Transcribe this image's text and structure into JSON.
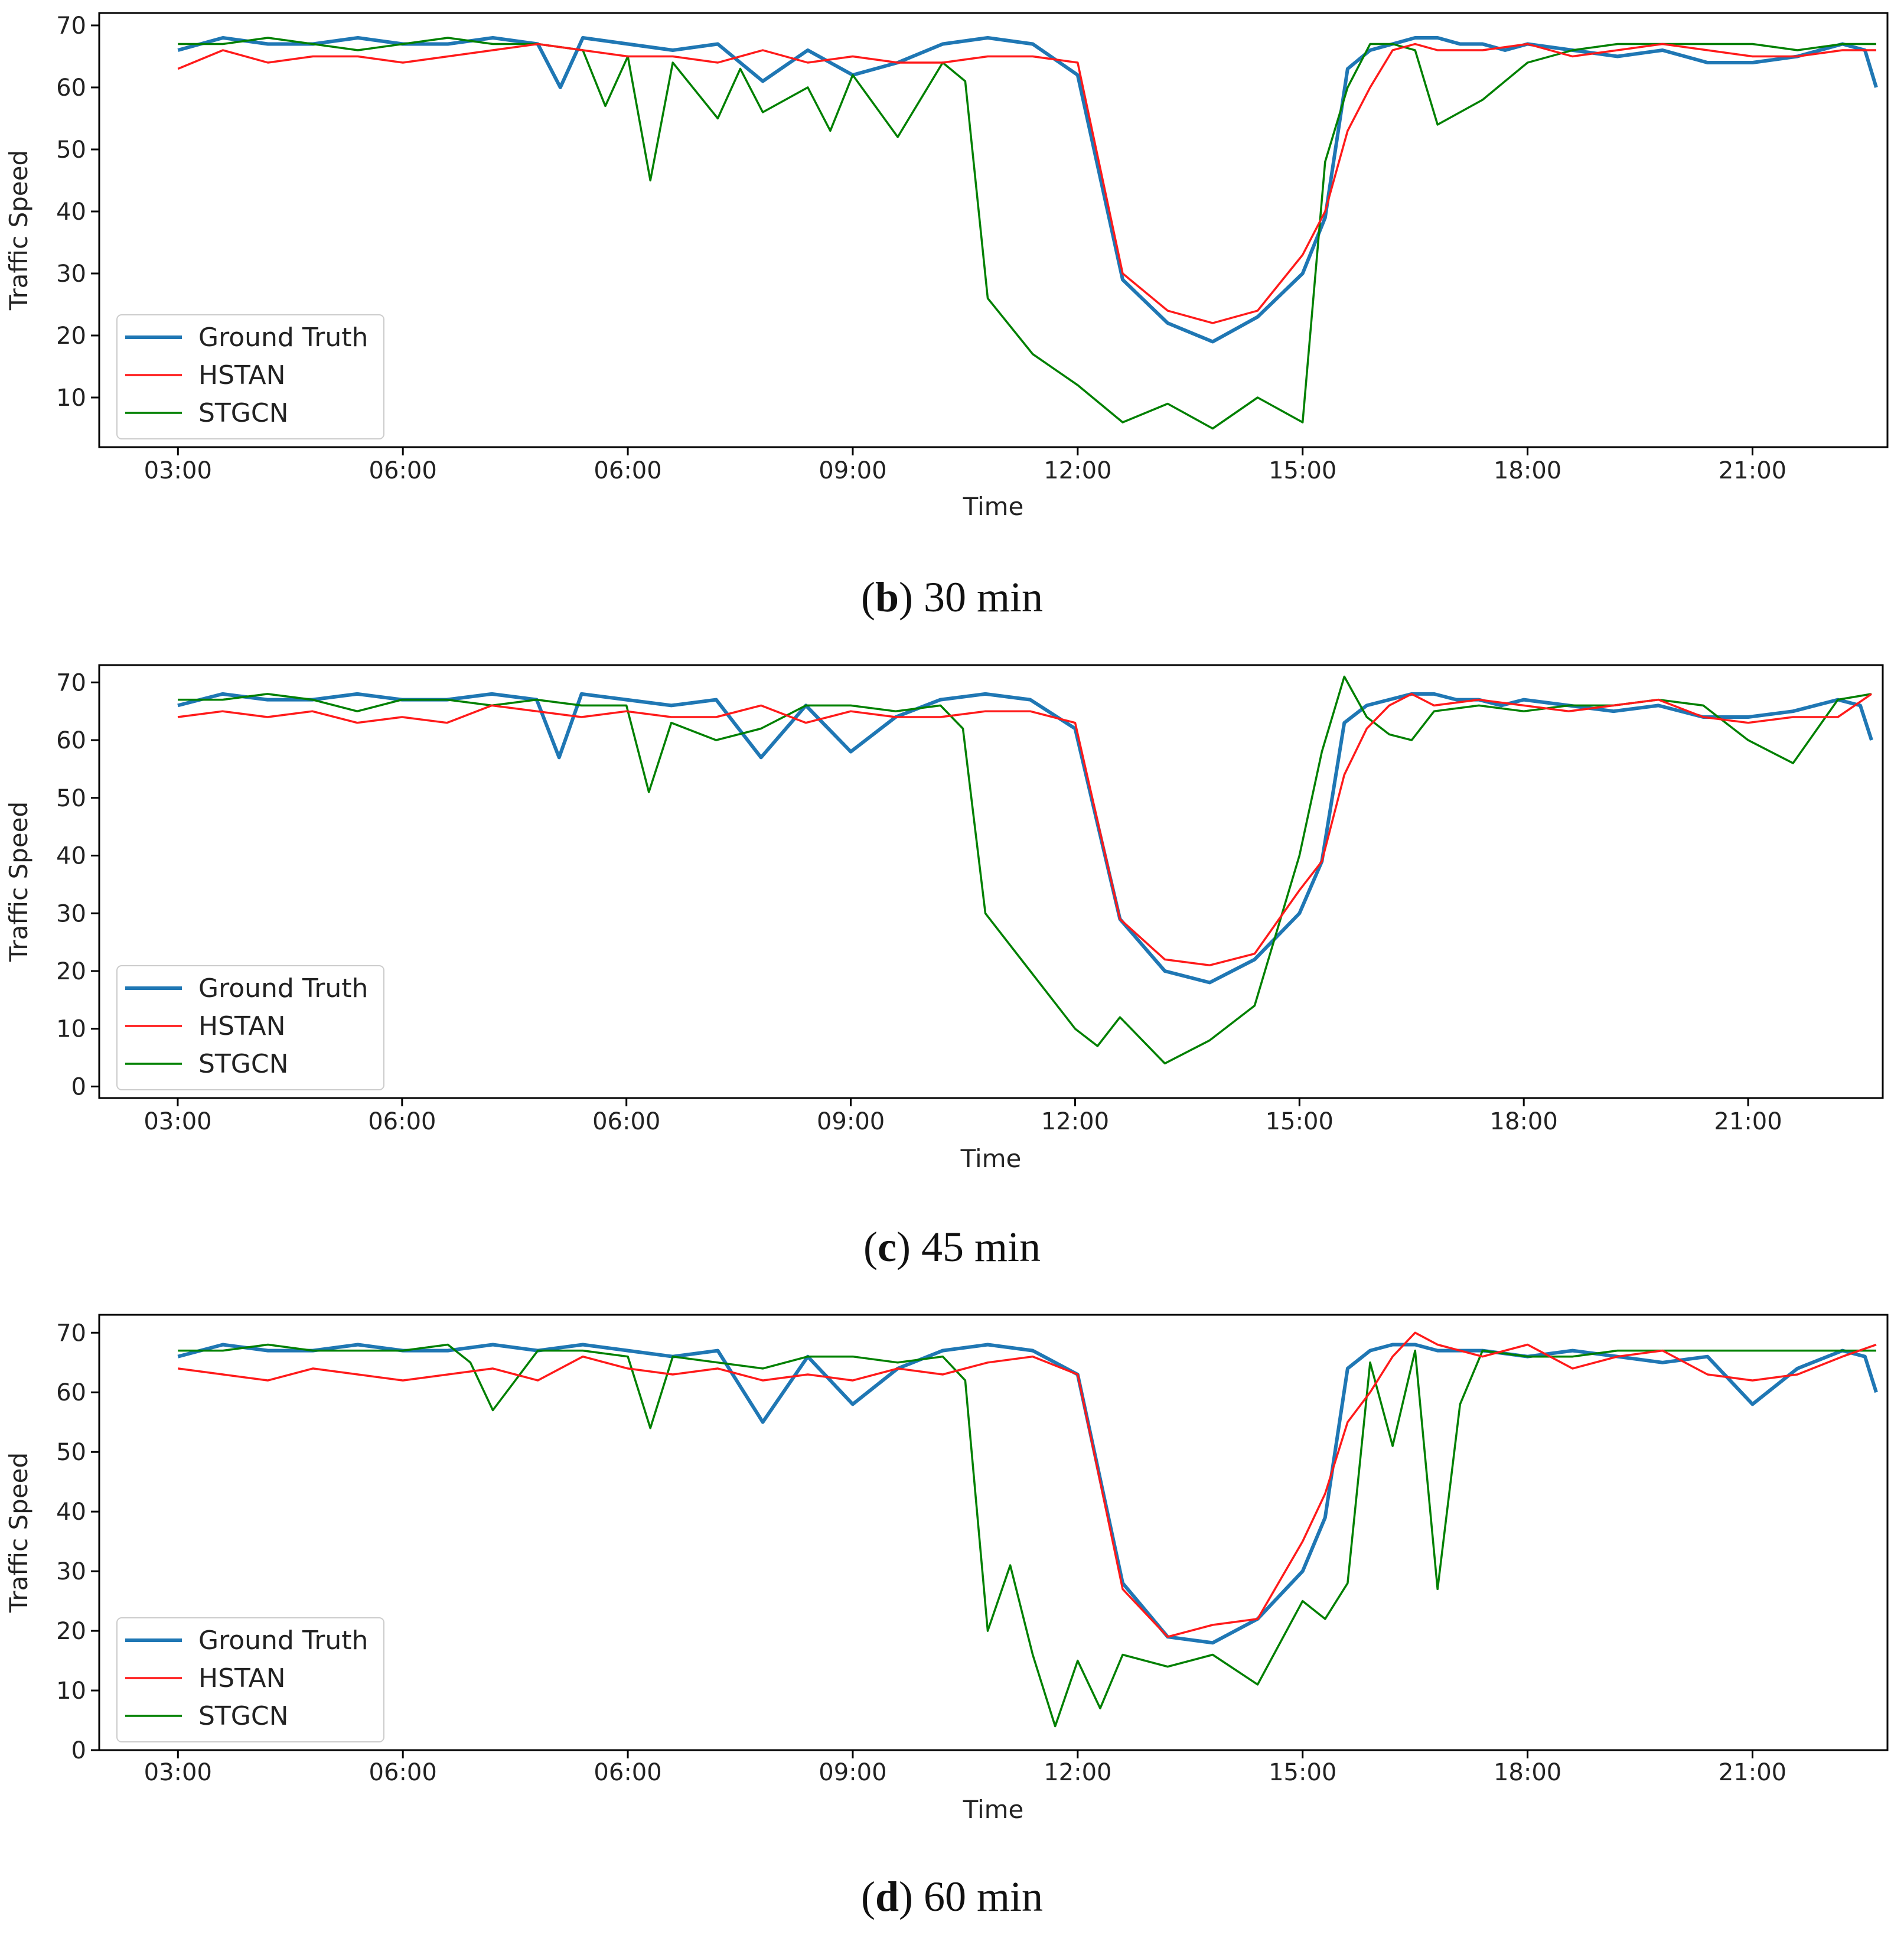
{
  "chart_data": [
    {
      "type": "line",
      "panel_label": "b",
      "caption_text": "30 min",
      "title": "",
      "xlabel": "Time",
      "ylabel": "Traffic Speed",
      "xlim": [
        -0.35,
        7.6
      ],
      "ylim": [
        2,
        72
      ],
      "yticks": [
        10,
        20,
        30,
        40,
        50,
        60,
        70
      ],
      "xtick_labels": [
        "03:00",
        "06:00",
        "06:00",
        "09:00",
        "12:00",
        "15:00",
        "18:00",
        "21:00"
      ],
      "legend": {
        "position": "lower-left",
        "entries": [
          "Ground Truth",
          "HSTAN",
          "STGCN"
        ]
      },
      "colors": {
        "Ground Truth": "#1f77b4",
        "HSTAN": "#ff1a1a",
        "STGCN": "#008000"
      },
      "series": [
        {
          "name": "Ground Truth",
          "x": [
            0.0,
            0.2,
            0.4,
            0.6,
            0.8,
            1.0,
            1.2,
            1.4,
            1.6,
            1.7,
            1.8,
            2.0,
            2.2,
            2.4,
            2.6,
            2.8,
            3.0,
            3.2,
            3.4,
            3.6,
            3.8,
            4.0,
            4.2,
            4.4,
            4.6,
            4.8,
            5.0,
            5.1,
            5.2,
            5.3,
            5.4,
            5.5,
            5.6,
            5.7,
            5.8,
            5.9,
            6.0,
            6.2,
            6.4,
            6.6,
            6.8,
            7.0,
            7.2,
            7.4,
            7.5,
            7.55
          ],
          "values": [
            66,
            68,
            67,
            67,
            68,
            67,
            67,
            68,
            67,
            60,
            68,
            67,
            66,
            67,
            61,
            66,
            62,
            64,
            67,
            68,
            67,
            62,
            29,
            22,
            19,
            23,
            30,
            39,
            63,
            66,
            67,
            68,
            68,
            67,
            67,
            66,
            67,
            66,
            65,
            66,
            64,
            64,
            65,
            67,
            66,
            60
          ]
        },
        {
          "name": "HSTAN",
          "x": [
            0.0,
            0.2,
            0.4,
            0.6,
            0.8,
            1.0,
            1.2,
            1.4,
            1.6,
            1.8,
            2.0,
            2.2,
            2.4,
            2.6,
            2.8,
            3.0,
            3.2,
            3.4,
            3.6,
            3.8,
            4.0,
            4.2,
            4.4,
            4.6,
            4.8,
            5.0,
            5.1,
            5.2,
            5.3,
            5.4,
            5.5,
            5.6,
            5.8,
            6.0,
            6.2,
            6.4,
            6.6,
            6.8,
            7.0,
            7.2,
            7.4,
            7.55
          ],
          "values": [
            63,
            66,
            64,
            65,
            65,
            64,
            65,
            66,
            67,
            66,
            65,
            65,
            64,
            66,
            64,
            65,
            64,
            64,
            65,
            65,
            64,
            30,
            24,
            22,
            24,
            33,
            40,
            53,
            60,
            66,
            67,
            66,
            66,
            67,
            65,
            66,
            67,
            66,
            65,
            65,
            66,
            66
          ]
        },
        {
          "name": "STGCN",
          "x": [
            0.0,
            0.2,
            0.4,
            0.6,
            0.8,
            1.0,
            1.2,
            1.4,
            1.6,
            1.8,
            1.9,
            2.0,
            2.1,
            2.2,
            2.4,
            2.5,
            2.6,
            2.8,
            2.9,
            3.0,
            3.2,
            3.4,
            3.5,
            3.6,
            3.8,
            4.0,
            4.2,
            4.4,
            4.6,
            4.8,
            5.0,
            5.1,
            5.2,
            5.3,
            5.4,
            5.5,
            5.6,
            5.8,
            6.0,
            6.2,
            6.4,
            6.6,
            6.8,
            7.0,
            7.2,
            7.4,
            7.55
          ],
          "values": [
            67,
            67,
            68,
            67,
            66,
            67,
            68,
            67,
            67,
            66,
            57,
            65,
            45,
            64,
            55,
            63,
            56,
            60,
            53,
            62,
            52,
            64,
            61,
            26,
            17,
            12,
            6,
            9,
            5,
            10,
            6,
            48,
            60,
            67,
            67,
            66,
            54,
            58,
            64,
            66,
            67,
            67,
            67,
            67,
            66,
            67,
            67
          ]
        }
      ]
    },
    {
      "type": "line",
      "panel_label": "c",
      "caption_text": "45 min",
      "title": "",
      "xlabel": "Time",
      "ylabel": "Traffic Speed",
      "xlim": [
        -0.35,
        7.6
      ],
      "ylim": [
        -2,
        73
      ],
      "yticks": [
        0,
        10,
        20,
        30,
        40,
        50,
        60,
        70
      ],
      "xtick_labels": [
        "03:00",
        "06:00",
        "06:00",
        "09:00",
        "12:00",
        "15:00",
        "18:00",
        "21:00"
      ],
      "legend": {
        "position": "lower-left",
        "entries": [
          "Ground Truth",
          "HSTAN",
          "STGCN"
        ]
      },
      "colors": {
        "Ground Truth": "#1f77b4",
        "HSTAN": "#ff1a1a",
        "STGCN": "#008000"
      },
      "series": [
        {
          "name": "Ground Truth",
          "x": [
            0.0,
            0.2,
            0.4,
            0.6,
            0.8,
            1.0,
            1.2,
            1.4,
            1.6,
            1.7,
            1.8,
            2.0,
            2.2,
            2.4,
            2.6,
            2.8,
            3.0,
            3.2,
            3.4,
            3.6,
            3.8,
            4.0,
            4.2,
            4.4,
            4.6,
            4.8,
            5.0,
            5.1,
            5.2,
            5.3,
            5.4,
            5.5,
            5.6,
            5.7,
            5.8,
            5.9,
            6.0,
            6.2,
            6.4,
            6.6,
            6.8,
            7.0,
            7.2,
            7.4,
            7.5,
            7.55
          ],
          "values": [
            66,
            68,
            67,
            67,
            68,
            67,
            67,
            68,
            67,
            57,
            68,
            67,
            66,
            67,
            57,
            66,
            58,
            64,
            67,
            68,
            67,
            62,
            29,
            20,
            18,
            22,
            30,
            39,
            63,
            66,
            67,
            68,
            68,
            67,
            67,
            66,
            67,
            66,
            65,
            66,
            64,
            64,
            65,
            67,
            66,
            60
          ]
        },
        {
          "name": "HSTAN",
          "x": [
            0.0,
            0.2,
            0.4,
            0.6,
            0.8,
            1.0,
            1.2,
            1.4,
            1.6,
            1.8,
            2.0,
            2.2,
            2.4,
            2.6,
            2.8,
            3.0,
            3.2,
            3.4,
            3.6,
            3.8,
            4.0,
            4.2,
            4.4,
            4.6,
            4.8,
            5.0,
            5.1,
            5.2,
            5.3,
            5.4,
            5.5,
            5.6,
            5.8,
            6.0,
            6.2,
            6.4,
            6.6,
            6.8,
            7.0,
            7.2,
            7.4,
            7.55
          ],
          "values": [
            64,
            65,
            64,
            65,
            63,
            64,
            63,
            66,
            65,
            64,
            65,
            64,
            64,
            66,
            63,
            65,
            64,
            64,
            65,
            65,
            63,
            29,
            22,
            21,
            23,
            34,
            39,
            54,
            62,
            66,
            68,
            66,
            67,
            66,
            65,
            66,
            67,
            64,
            63,
            64,
            64,
            68
          ]
        },
        {
          "name": "STGCN",
          "x": [
            0.0,
            0.2,
            0.4,
            0.6,
            0.8,
            1.0,
            1.2,
            1.4,
            1.6,
            1.8,
            2.0,
            2.1,
            2.2,
            2.4,
            2.6,
            2.8,
            3.0,
            3.2,
            3.4,
            3.5,
            3.6,
            3.8,
            4.0,
            4.1,
            4.2,
            4.4,
            4.6,
            4.8,
            5.0,
            5.1,
            5.2,
            5.3,
            5.4,
            5.5,
            5.6,
            5.8,
            6.0,
            6.2,
            6.4,
            6.6,
            6.8,
            7.0,
            7.2,
            7.4,
            7.55
          ],
          "values": [
            67,
            67,
            68,
            67,
            65,
            67,
            67,
            66,
            67,
            66,
            66,
            51,
            63,
            60,
            62,
            66,
            66,
            65,
            66,
            62,
            30,
            20,
            10,
            7,
            12,
            4,
            8,
            14,
            40,
            58,
            71,
            64,
            61,
            60,
            65,
            66,
            65,
            66,
            66,
            67,
            66,
            60,
            56,
            67,
            68
          ]
        }
      ]
    },
    {
      "type": "line",
      "panel_label": "d",
      "caption_text": "60 min",
      "title": "",
      "xlabel": "Time",
      "ylabel": "Traffic Speed",
      "xlim": [
        -0.35,
        7.6
      ],
      "ylim": [
        0,
        73
      ],
      "yticks": [
        0,
        10,
        20,
        30,
        40,
        50,
        60,
        70
      ],
      "xtick_labels": [
        "03:00",
        "06:00",
        "06:00",
        "09:00",
        "12:00",
        "15:00",
        "18:00",
        "21:00"
      ],
      "legend": {
        "position": "lower-left",
        "entries": [
          "Ground Truth",
          "HSTAN",
          "STGCN"
        ]
      },
      "colors": {
        "Ground Truth": "#1f77b4",
        "HSTAN": "#ff1a1a",
        "STGCN": "#008000"
      },
      "series": [
        {
          "name": "Ground Truth",
          "x": [
            0.0,
            0.2,
            0.4,
            0.6,
            0.8,
            1.0,
            1.2,
            1.4,
            1.6,
            1.8,
            2.0,
            2.2,
            2.4,
            2.6,
            2.8,
            3.0,
            3.2,
            3.4,
            3.6,
            3.8,
            4.0,
            4.2,
            4.4,
            4.6,
            4.8,
            5.0,
            5.1,
            5.2,
            5.3,
            5.4,
            5.5,
            5.6,
            5.8,
            6.0,
            6.2,
            6.4,
            6.6,
            6.8,
            7.0,
            7.2,
            7.4,
            7.5,
            7.55
          ],
          "values": [
            66,
            68,
            67,
            67,
            68,
            67,
            67,
            68,
            67,
            68,
            67,
            66,
            67,
            55,
            66,
            58,
            64,
            67,
            68,
            67,
            63,
            28,
            19,
            18,
            22,
            30,
            39,
            64,
            67,
            68,
            68,
            67,
            67,
            66,
            67,
            66,
            65,
            66,
            58,
            64,
            67,
            66,
            60
          ]
        },
        {
          "name": "HSTAN",
          "x": [
            0.0,
            0.2,
            0.4,
            0.6,
            0.8,
            1.0,
            1.2,
            1.4,
            1.6,
            1.8,
            2.0,
            2.2,
            2.4,
            2.6,
            2.8,
            3.0,
            3.2,
            3.4,
            3.6,
            3.8,
            4.0,
            4.2,
            4.4,
            4.6,
            4.8,
            5.0,
            5.1,
            5.2,
            5.3,
            5.4,
            5.5,
            5.6,
            5.8,
            6.0,
            6.2,
            6.4,
            6.6,
            6.8,
            7.0,
            7.2,
            7.4,
            7.55
          ],
          "values": [
            64,
            63,
            62,
            64,
            63,
            62,
            63,
            64,
            62,
            66,
            64,
            63,
            64,
            62,
            63,
            62,
            64,
            63,
            65,
            66,
            63,
            27,
            19,
            21,
            22,
            35,
            43,
            55,
            60,
            66,
            70,
            68,
            66,
            68,
            64,
            66,
            67,
            63,
            62,
            63,
            66,
            68
          ]
        },
        {
          "name": "STGCN",
          "x": [
            0.0,
            0.2,
            0.4,
            0.6,
            0.8,
            1.0,
            1.2,
            1.3,
            1.4,
            1.6,
            1.8,
            2.0,
            2.1,
            2.2,
            2.4,
            2.6,
            2.8,
            3.0,
            3.2,
            3.4,
            3.5,
            3.6,
            3.7,
            3.8,
            3.9,
            4.0,
            4.1,
            4.2,
            4.4,
            4.6,
            4.8,
            5.0,
            5.1,
            5.2,
            5.3,
            5.4,
            5.5,
            5.6,
            5.7,
            5.8,
            6.0,
            6.2,
            6.4,
            6.6,
            6.8,
            7.0,
            7.2,
            7.4,
            7.55
          ],
          "values": [
            67,
            67,
            68,
            67,
            67,
            67,
            68,
            65,
            57,
            67,
            67,
            66,
            54,
            66,
            65,
            64,
            66,
            66,
            65,
            66,
            62,
            20,
            31,
            16,
            4,
            15,
            7,
            16,
            14,
            16,
            11,
            25,
            22,
            28,
            65,
            51,
            67,
            27,
            58,
            67,
            66,
            66,
            67,
            67,
            67,
            67,
            67,
            67,
            67
          ]
        }
      ]
    }
  ]
}
